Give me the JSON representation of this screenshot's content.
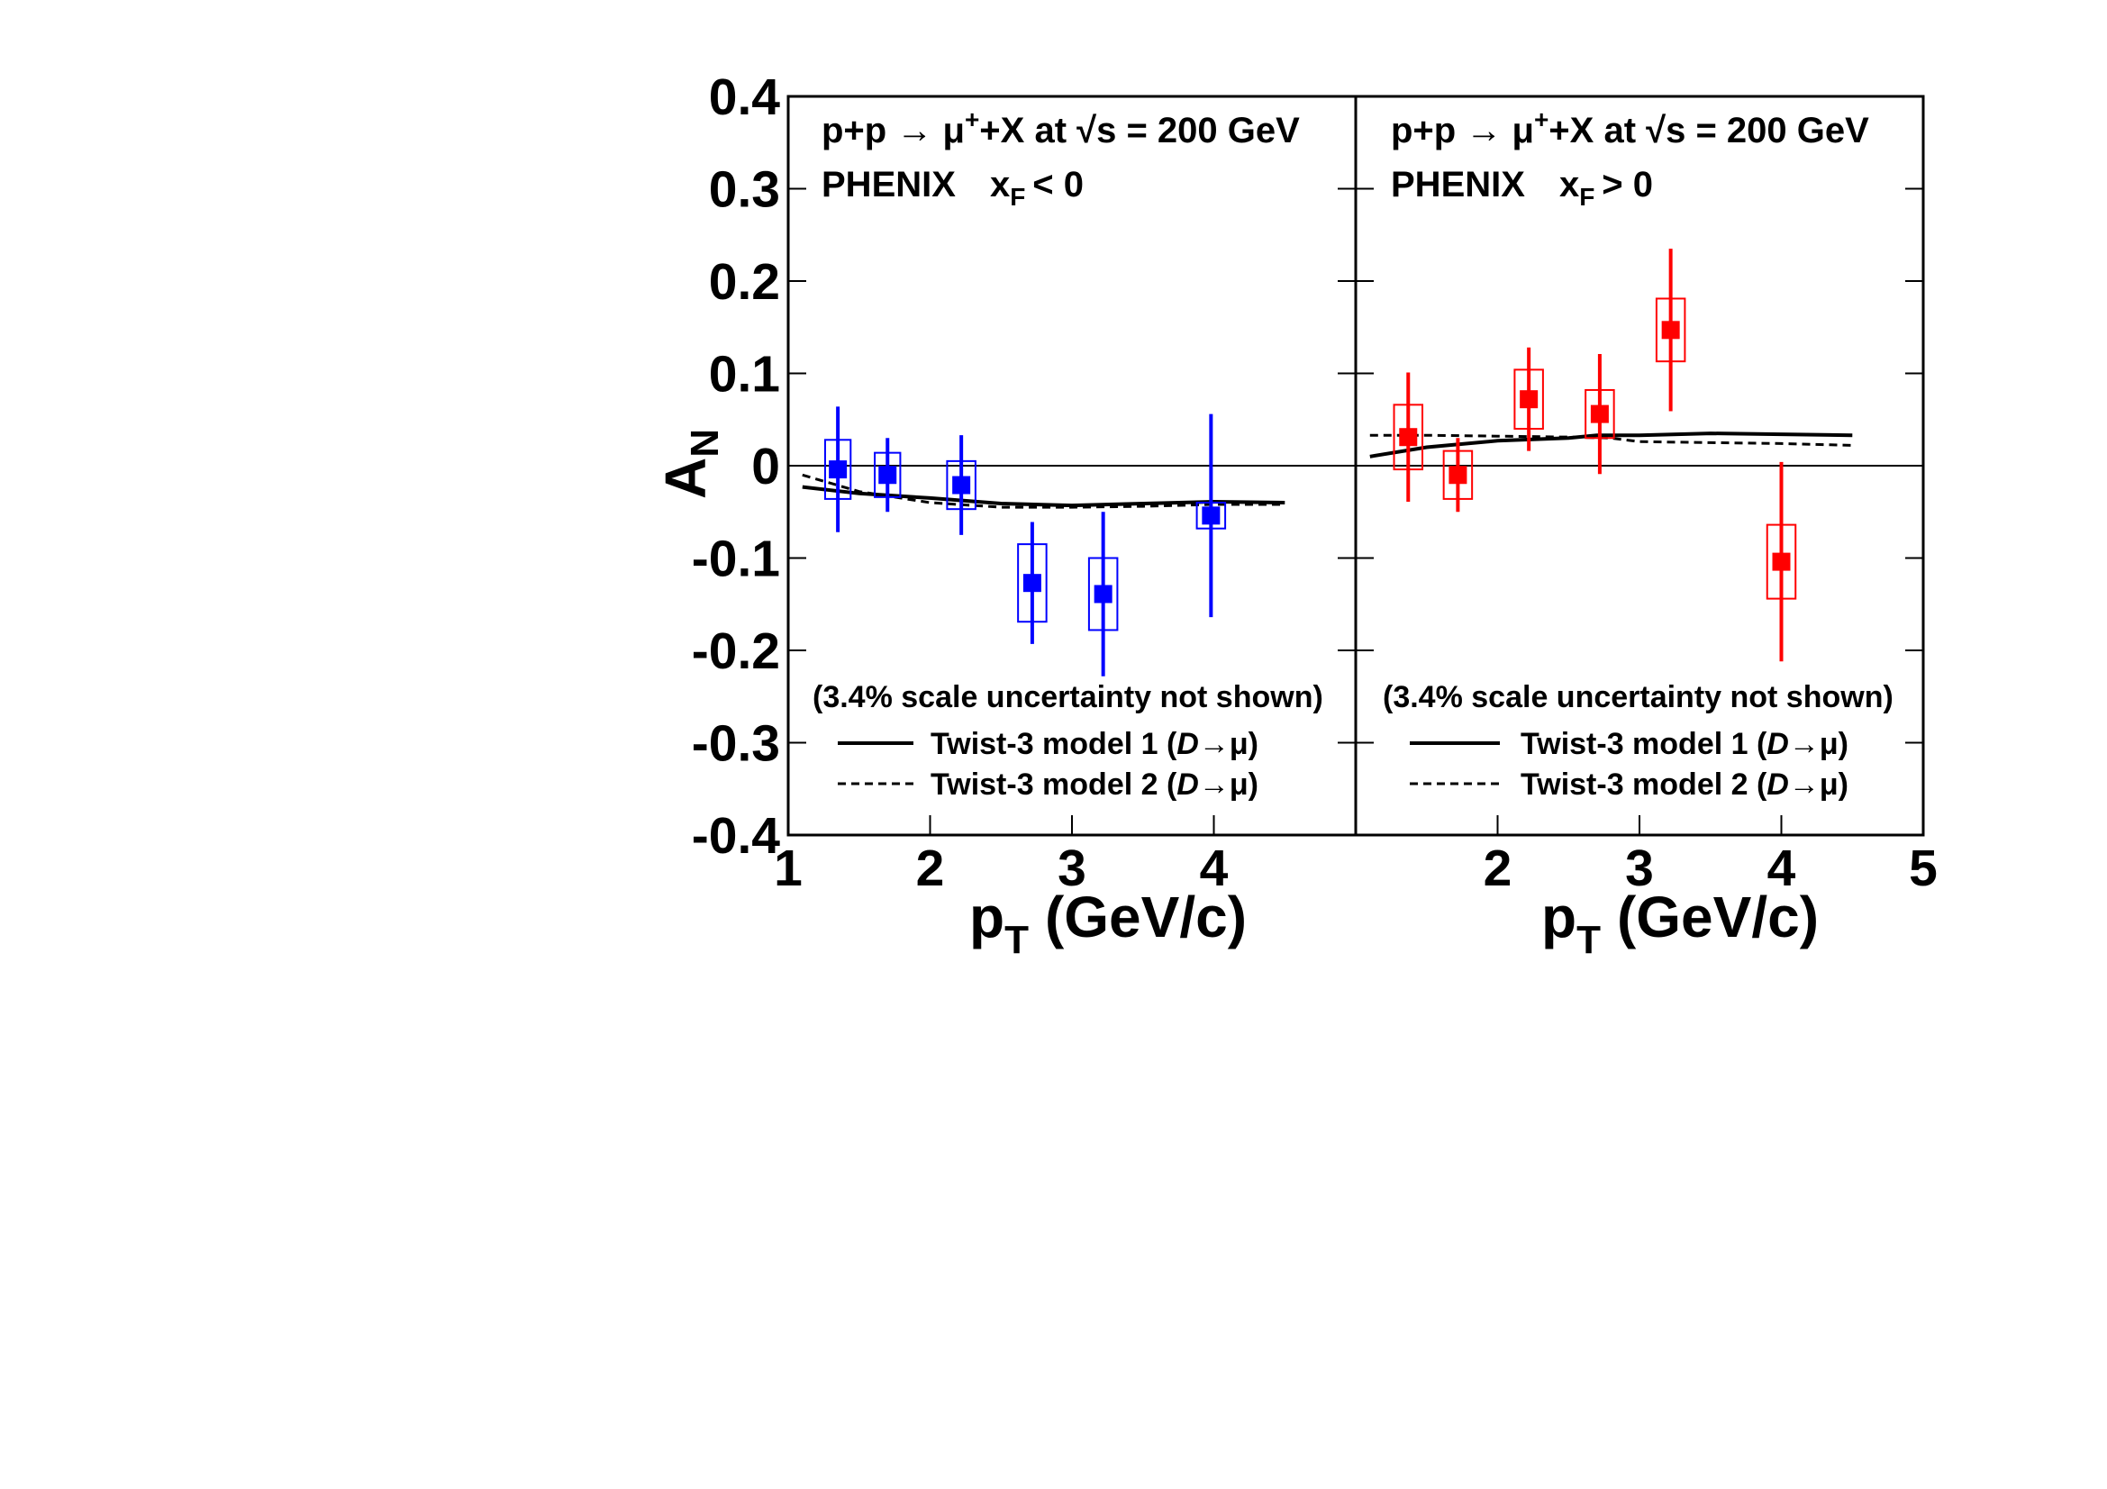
{
  "chart_data": {
    "type": "scatter",
    "ylabel": "A",
    "ylabel_sub": "N",
    "ylim": [
      -0.4,
      0.4
    ],
    "yticks": [
      "0.4",
      "0.3",
      "0.2",
      "0.1",
      "0",
      "-0.1",
      "-0.2",
      "-0.3",
      "-0.4"
    ],
    "ytick_values": [
      0.4,
      0.3,
      0.2,
      0.1,
      0,
      -0.1,
      -0.2,
      -0.3,
      -0.4
    ],
    "panels": [
      {
        "id": "left",
        "xlabel": "p",
        "xlabel_sub": "T",
        "xlabel_unit": "(GeV/c)",
        "xlim": [
          1,
          5
        ],
        "xticks": [
          "1",
          "2",
          "3",
          "4"
        ],
        "xtick_values": [
          1,
          2,
          3,
          4
        ],
        "annotation_line1": {
          "pre": "p+p → μ",
          "sup": "+",
          "post": "+X at √s = 200 GeV"
        },
        "annotation_line2": {
          "exp": "PHENIX",
          "x": "x",
          "xsub": "F",
          "cond": "< 0"
        },
        "note": "(3.4% scale uncertainty not shown)",
        "legend": [
          {
            "label": "Twist-3 model 1 (",
            "italic": "D",
            "arrow": "→μ)",
            "style": "solid"
          },
          {
            "label": "Twist-3 model 2 (",
            "italic": "D",
            "arrow": "→μ)",
            "style": "dashed"
          }
        ],
        "color": "#0000ff",
        "points": [
          {
            "x": 1.35,
            "y": -0.004,
            "stat": 0.068,
            "sys": 0.032,
            "boxw": 0.18
          },
          {
            "x": 1.7,
            "y": -0.01,
            "stat": 0.04,
            "sys": 0.024,
            "boxw": 0.18
          },
          {
            "x": 2.22,
            "y": -0.021,
            "stat": 0.054,
            "sys": 0.026,
            "boxw": 0.2
          },
          {
            "x": 2.72,
            "y": -0.127,
            "stat": 0.066,
            "sys": 0.042,
            "boxw": 0.2
          },
          {
            "x": 3.22,
            "y": -0.139,
            "stat": 0.089,
            "sys": 0.039,
            "boxw": 0.2
          },
          {
            "x": 3.98,
            "y": -0.054,
            "stat": 0.11,
            "sys": 0.014,
            "boxw": 0.2
          }
        ],
        "model1": [
          [
            1.1,
            -0.023
          ],
          [
            1.5,
            -0.03
          ],
          [
            2.0,
            -0.035
          ],
          [
            2.5,
            -0.041
          ],
          [
            3.0,
            -0.043
          ],
          [
            3.5,
            -0.041
          ],
          [
            4.0,
            -0.039
          ],
          [
            4.5,
            -0.04
          ]
        ],
        "model2": [
          [
            1.1,
            -0.01
          ],
          [
            1.5,
            -0.028
          ],
          [
            2.0,
            -0.04
          ],
          [
            2.5,
            -0.045
          ],
          [
            3.0,
            -0.045
          ],
          [
            3.5,
            -0.044
          ],
          [
            4.0,
            -0.042
          ],
          [
            4.5,
            -0.042
          ]
        ]
      },
      {
        "id": "right",
        "xlabel": "p",
        "xlabel_sub": "T",
        "xlabel_unit": "(GeV/c)",
        "xlim": [
          1,
          5
        ],
        "xticks": [
          "2",
          "3",
          "4",
          "5"
        ],
        "xtick_values": [
          2,
          3,
          4,
          5
        ],
        "annotation_line1": {
          "pre": "p+p → μ",
          "sup": "+",
          "post": "+X at √s = 200 GeV"
        },
        "annotation_line2": {
          "exp": "PHENIX",
          "x": "x",
          "xsub": "F",
          "cond": "> 0"
        },
        "note": "(3.4% scale uncertainty not shown)",
        "legend": [
          {
            "label": "Twist-3 model 1 (",
            "italic": "D",
            "arrow": "→μ)",
            "style": "solid"
          },
          {
            "label": "Twist-3 model 2 (",
            "italic": "D",
            "arrow": "→μ)",
            "style": "dashed"
          }
        ],
        "color": "#ff0000",
        "points": [
          {
            "x": 1.37,
            "y": 0.031,
            "stat": 0.07,
            "sys": 0.035,
            "boxw": 0.2
          },
          {
            "x": 1.72,
            "y": -0.01,
            "stat": 0.04,
            "sys": 0.026,
            "boxw": 0.2
          },
          {
            "x": 2.22,
            "y": 0.072,
            "stat": 0.056,
            "sys": 0.032,
            "boxw": 0.2
          },
          {
            "x": 2.72,
            "y": 0.056,
            "stat": 0.065,
            "sys": 0.026,
            "boxw": 0.2
          },
          {
            "x": 3.22,
            "y": 0.147,
            "stat": 0.088,
            "sys": 0.034,
            "boxw": 0.2
          },
          {
            "x": 4.0,
            "y": -0.104,
            "stat": 0.108,
            "sys": 0.04,
            "boxw": 0.2
          }
        ],
        "model1": [
          [
            1.1,
            0.01
          ],
          [
            1.5,
            0.02
          ],
          [
            2.0,
            0.027
          ],
          [
            2.5,
            0.03
          ],
          [
            2.7,
            0.033
          ],
          [
            3.0,
            0.033
          ],
          [
            3.5,
            0.035
          ],
          [
            4.0,
            0.034
          ],
          [
            4.5,
            0.033
          ]
        ],
        "model2": [
          [
            1.1,
            0.033
          ],
          [
            1.5,
            0.033
          ],
          [
            2.0,
            0.032
          ],
          [
            2.5,
            0.031
          ],
          [
            2.8,
            0.03
          ],
          [
            3.0,
            0.026
          ],
          [
            3.5,
            0.025
          ],
          [
            4.0,
            0.024
          ],
          [
            4.5,
            0.022
          ]
        ]
      }
    ]
  }
}
